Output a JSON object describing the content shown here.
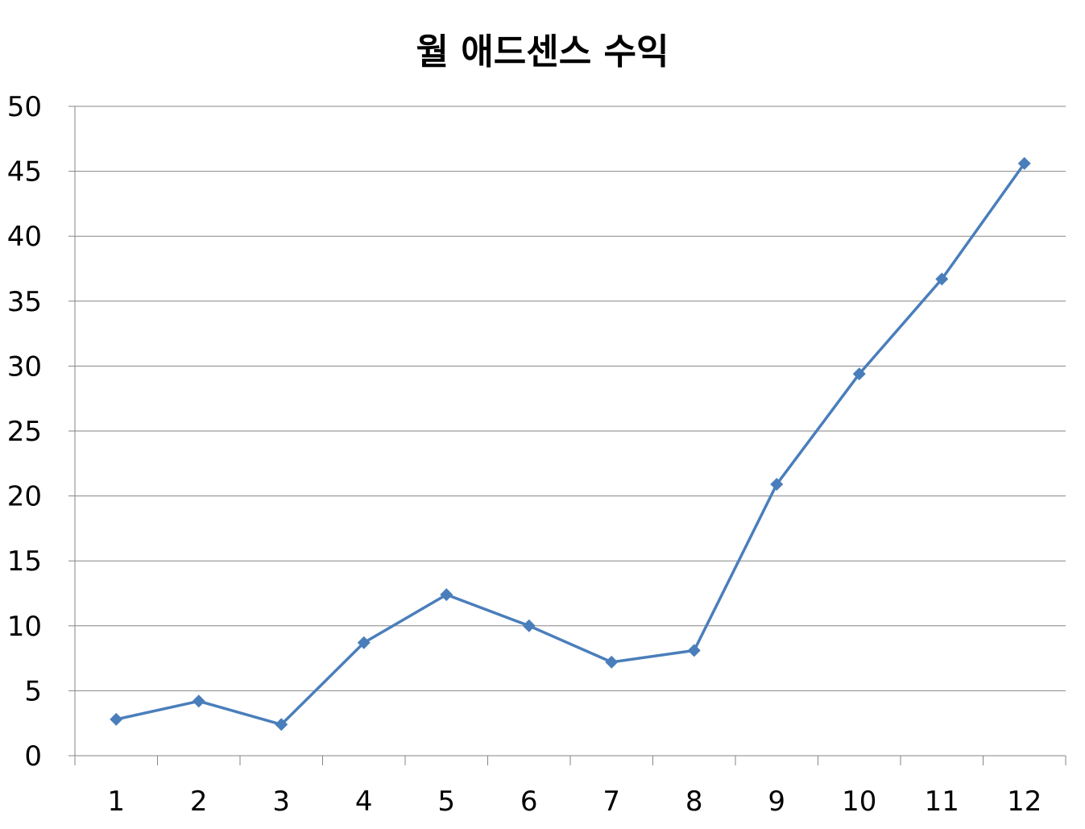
{
  "chart_data": {
    "type": "line",
    "title": "월 애드센스 수익",
    "xlabel": "",
    "ylabel": "",
    "categories": [
      "1",
      "2",
      "3",
      "4",
      "5",
      "6",
      "7",
      "8",
      "9",
      "10",
      "11",
      "12"
    ],
    "series": [
      {
        "values": [
          2.8,
          4.2,
          2.4,
          8.7,
          12.4,
          10.0,
          7.2,
          8.1,
          20.9,
          29.4,
          36.7,
          45.6
        ]
      }
    ],
    "ylim": [
      0,
      50
    ],
    "yticks": [
      "0",
      "5",
      "10",
      "15",
      "20",
      "25",
      "30",
      "35",
      "40",
      "45",
      "50"
    ],
    "grid": "horizontal",
    "legend": "none",
    "marker": "diamond",
    "line_color": "#4a7ebb",
    "grid_color": "#868686"
  }
}
